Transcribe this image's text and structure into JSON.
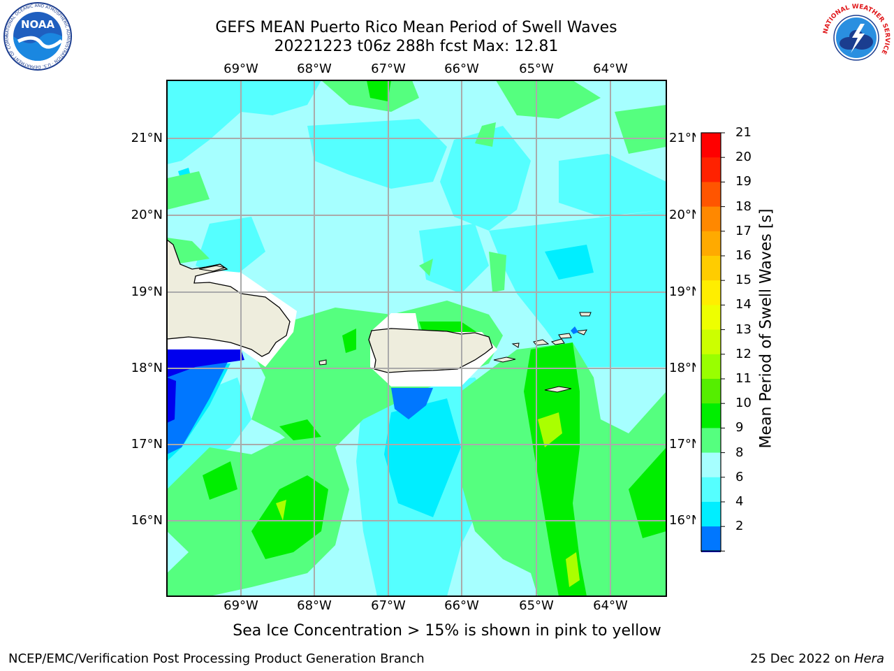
{
  "title": {
    "line1": "GEFS MEAN Puerto Rico Mean Period of Swell Waves",
    "line2": "20221223 t06z 288h fcst   Max: 12.81"
  },
  "logos": {
    "left": "NOAA",
    "left_ring": "NATIONAL OCEANIC AND ATMOSPHERIC ADMINISTRATION · U.S. DEPARTMENT OF COMMERCE",
    "right_ring": "NATIONAL WEATHER SERVICE"
  },
  "map": {
    "lon_labels": [
      "69°W",
      "68°W",
      "67°W",
      "66°W",
      "65°W",
      "64°W"
    ],
    "lat_labels": [
      "21°N",
      "20°N",
      "19°N",
      "18°N",
      "17°N",
      "16°N"
    ],
    "colors": {
      "ocean_light": "#a6ffff",
      "ocean_cyan": "#55ffff",
      "ocean_deep_cyan": "#00eeff",
      "green_light": "#55ff7f",
      "green": "#00ee00",
      "yellow_green": "#aaff00",
      "blue": "#0077ff",
      "dark_blue": "#0000ee",
      "land": "#eeeddd",
      "grid": "#aaaaaa"
    }
  },
  "colorbar": {
    "title": "Mean Period of Swell Waves [s]",
    "ticks": [
      "21",
      "20",
      "19",
      "18",
      "17",
      "16",
      "15",
      "14",
      "13",
      "12",
      "11",
      "10",
      "9",
      "8",
      "6",
      "4",
      "2"
    ],
    "colors": [
      "#ff0000",
      "#ff2200",
      "#ff5500",
      "#ff8800",
      "#ffaa00",
      "#ffcc00",
      "#ffee00",
      "#eeff00",
      "#ccff00",
      "#99ff00",
      "#55ee00",
      "#00ee00",
      "#55ff7f",
      "#a6ffff",
      "#55ffff",
      "#00eeff",
      "#0077ff"
    ],
    "extend_color": "#0000ee"
  },
  "footer": {
    "note": "Sea Ice Concentration > 15% is shown in pink to yellow",
    "left": "NCEP/EMC/Verification Post Processing Product Generation Branch",
    "right_date": "25 Dec 2022 on ",
    "right_host": "Hera"
  }
}
